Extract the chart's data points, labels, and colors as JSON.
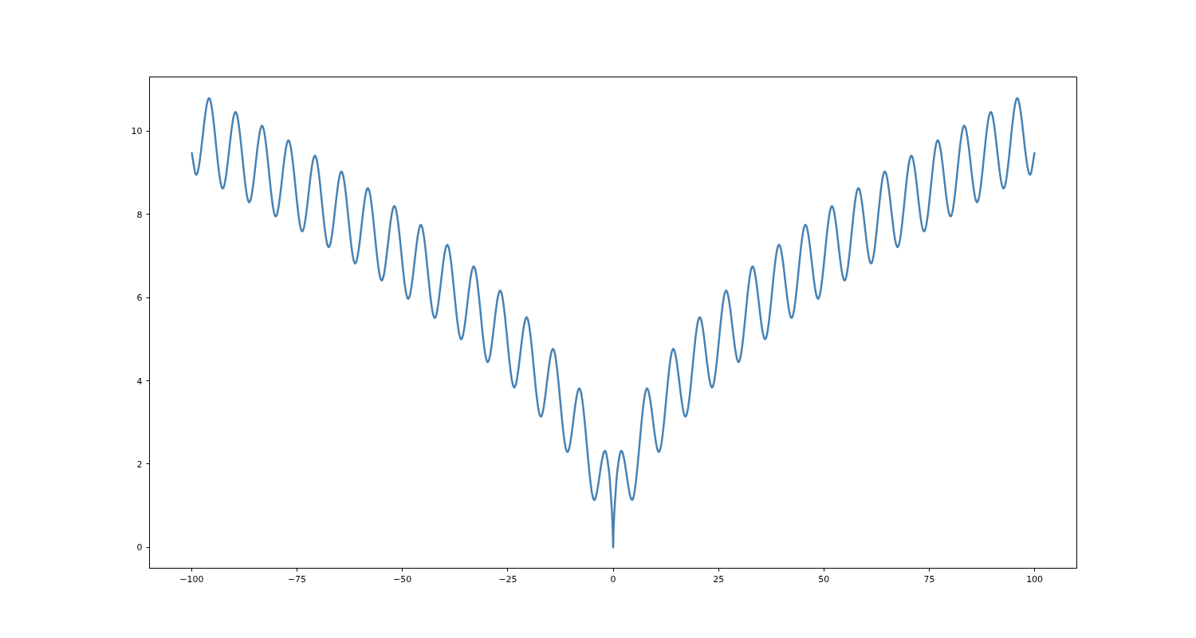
{
  "chart_data": {
    "type": "line",
    "xlim": [
      -110,
      110
    ],
    "ylim": [
      -0.5,
      11.3
    ],
    "xticks": [
      -100,
      -75,
      -50,
      -25,
      0,
      25,
      50,
      75,
      100
    ],
    "yticks": [
      0,
      2,
      4,
      6,
      8,
      10
    ],
    "grid": false,
    "marker": "none",
    "line_style": "solid",
    "x": [
      -100,
      -98.91,
      -95.87,
      -92.63,
      -89.59,
      -86.34,
      -83.3,
      -80.05,
      -77.03,
      -73.77,
      -70.75,
      -67.48,
      -64.46,
      -61.2,
      -58.19,
      -54.91,
      -51.91,
      -48.62,
      -45.62,
      -42.33,
      -39.35,
      -36.05,
      -33.08,
      -29.76,
      -26.8,
      -23.46,
      -20.53,
      -17.16,
      -14.27,
      -10.85,
      -8.03,
      -4.49,
      -1.94,
      -1,
      -0.5,
      -0.1,
      0,
      0.1,
      0.5,
      1,
      1.94,
      4.49,
      8.03,
      10.85,
      14.27,
      17.16,
      20.53,
      23.46,
      26.8,
      29.76,
      33.08,
      36.05,
      39.35,
      42.33,
      45.62,
      48.62,
      51.91,
      54.91,
      58.19,
      61.2,
      64.46,
      67.48,
      70.75,
      73.77,
      77.03,
      80.05,
      83.3,
      86.34,
      89.59,
      92.63,
      95.87,
      98.91,
      100
    ],
    "series": [
      {
        "color": "#4682b4",
        "values": [
          9.49,
          8.95,
          10.79,
          8.62,
          10.46,
          8.29,
          10.13,
          7.95,
          9.78,
          7.59,
          9.41,
          7.21,
          9.03,
          6.82,
          8.63,
          6.41,
          8.2,
          5.97,
          7.75,
          5.51,
          7.27,
          5.0,
          6.75,
          4.45,
          6.17,
          3.84,
          5.53,
          3.14,
          4.77,
          2.29,
          3.82,
          1.14,
          2.32,
          1.84,
          1.19,
          0.42,
          0,
          0.42,
          1.19,
          1.84,
          2.32,
          1.14,
          3.82,
          2.29,
          4.77,
          3.14,
          5.53,
          3.84,
          6.17,
          4.45,
          6.75,
          5.0,
          7.27,
          5.51,
          7.75,
          5.97,
          8.2,
          6.41,
          8.63,
          6.82,
          9.03,
          7.21,
          9.41,
          7.59,
          9.78,
          7.95,
          10.13,
          8.29,
          10.46,
          8.62,
          10.79,
          8.95,
          9.49
        ]
      }
    ]
  }
}
